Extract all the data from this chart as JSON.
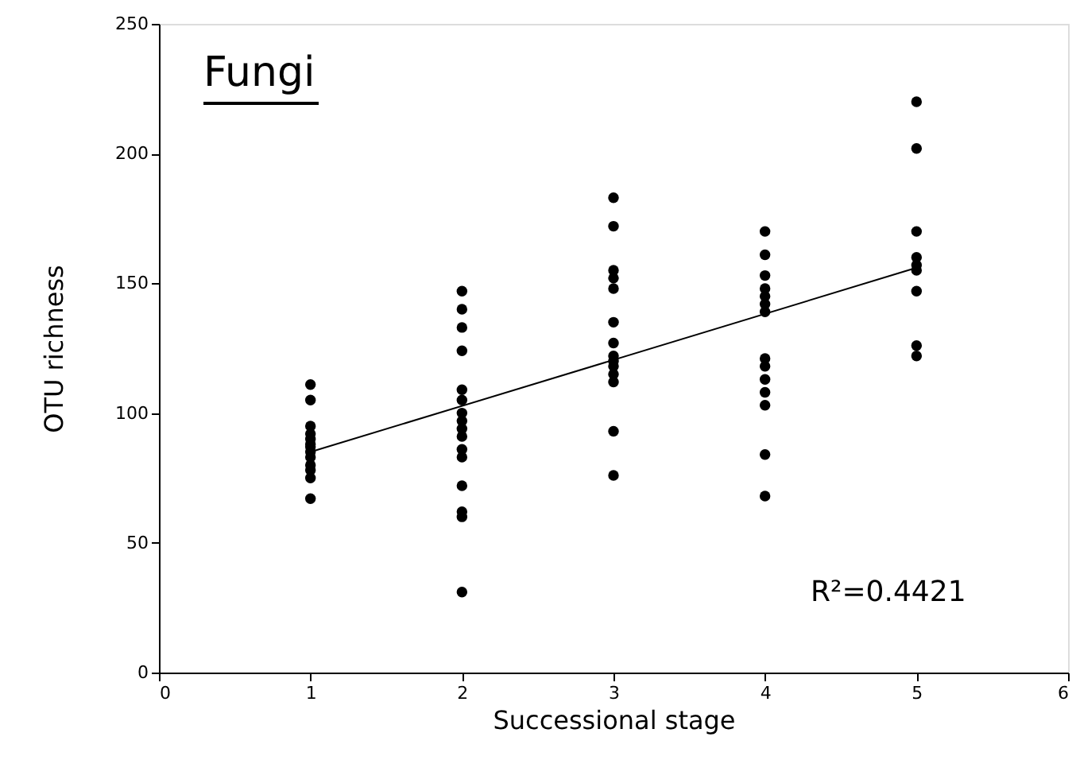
{
  "chart_data": {
    "type": "scatter",
    "title": "Fungi",
    "xlabel": "Successional stage",
    "ylabel": "OTU richness",
    "xlim": [
      0,
      6
    ],
    "xticks": [
      0,
      1,
      2,
      3,
      4,
      5,
      6
    ],
    "ylim": [
      0,
      250
    ],
    "yticks": [
      0,
      50,
      100,
      150,
      200,
      250
    ],
    "grid": false,
    "series": [
      {
        "type": "scatter",
        "marker": "circle",
        "color": "#000000",
        "x": [
          1,
          1,
          1,
          1,
          1,
          1,
          1,
          1,
          1,
          1,
          1,
          1,
          1,
          2,
          2,
          2,
          2,
          2,
          2,
          2,
          2,
          2,
          2,
          2,
          2,
          2,
          2,
          2,
          2,
          3,
          3,
          3,
          3,
          3,
          3,
          3,
          3,
          3,
          3,
          3,
          3,
          3,
          3,
          4,
          4,
          4,
          4,
          4,
          4,
          4,
          4,
          4,
          4,
          4,
          4,
          4,
          4,
          5,
          5,
          5,
          5,
          5,
          5,
          5,
          5,
          5
        ],
        "values": [
          111,
          105,
          95,
          92,
          90,
          88,
          87,
          85,
          83,
          80,
          78,
          75,
          67,
          147,
          140,
          133,
          124,
          109,
          105,
          100,
          97,
          94,
          91,
          86,
          83,
          72,
          62,
          60,
          31,
          183,
          172,
          155,
          152,
          148,
          135,
          127,
          122,
          120,
          118,
          115,
          112,
          93,
          76,
          170,
          161,
          153,
          148,
          145,
          142,
          139,
          121,
          118,
          113,
          108,
          103,
          84,
          68,
          220,
          202,
          170,
          160,
          157,
          155,
          147,
          126,
          122
        ]
      },
      {
        "type": "line",
        "marker": "none",
        "line_style": "solid",
        "color": "#000000",
        "x": [
          1,
          5
        ],
        "values": [
          85,
          156
        ]
      }
    ],
    "annotations": [
      "R²=0.4421"
    ]
  }
}
